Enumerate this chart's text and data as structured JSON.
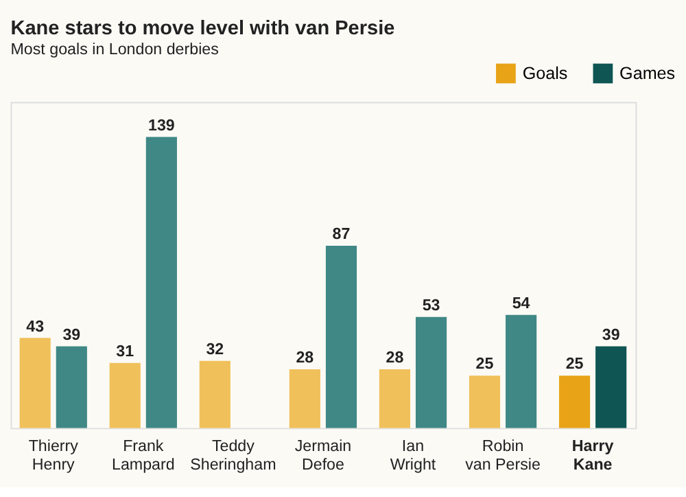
{
  "chart_data": {
    "type": "bar",
    "title": "Kane stars to move level with van Persie",
    "subtitle": "Most goals in London derbies",
    "categories": [
      "Thierry\nHenry",
      "Frank\nLampard",
      "Teddy\nSheringham",
      "Jermain\nDefoe",
      "Ian\nWright",
      "Robin\nvan Persie",
      "Harry\nKane"
    ],
    "series": [
      {
        "name": "Goals",
        "color": "#e8a317",
        "colors": [
          "#f0c05a",
          "#f0c05a",
          "#f0c05a",
          "#f0c05a",
          "#f0c05a",
          "#f0c05a",
          "#e8a317"
        ],
        "values": [
          43,
          31,
          32,
          28,
          28,
          25,
          25
        ]
      },
      {
        "name": "Games",
        "color": "#0e5553",
        "colors": [
          "#3f8886",
          "#3f8886",
          "#3f8886",
          "#3f8886",
          "#3f8886",
          "#3f8886",
          "#0e5553"
        ],
        "values": [
          39,
          139,
          null,
          87,
          53,
          54,
          39
        ]
      }
    ],
    "data_labels": true,
    "legend": "top right",
    "grid": false
  }
}
